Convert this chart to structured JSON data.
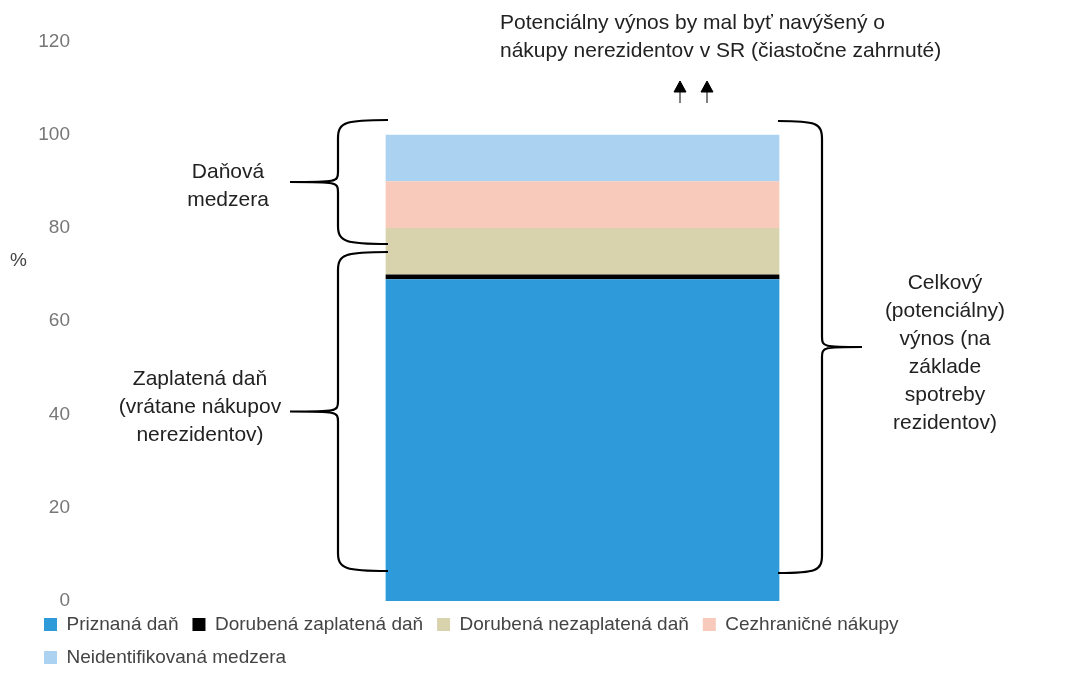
{
  "chart_data": {
    "type": "bar",
    "stacked": true,
    "categories": [
      null
    ],
    "series": [
      {
        "name": "Priznaná daň",
        "color": "#2e9ad9",
        "values": [
          69
        ]
      },
      {
        "name": "Dorubená zaplatená daň",
        "color": "#000000",
        "values": [
          1
        ]
      },
      {
        "name": "Dorubená nezaplatená daň",
        "color": "#d8d2ad",
        "values": [
          10
        ]
      },
      {
        "name": "Cezhraničné nákupy",
        "color": "#f8cabb",
        "values": [
          10
        ]
      },
      {
        "name": "Neidentifikovaná medzera",
        "color": "#abd2f1",
        "values": [
          10
        ]
      }
    ],
    "ylabel": "%",
    "ylim": [
      0,
      120
    ],
    "yticks": [
      0,
      20,
      40,
      60,
      80,
      100,
      120
    ],
    "grid": false,
    "legend": "bottom",
    "annotations": [
      "Potenciálny výnos by mal byť navýšený o nákupy nerezidentov v SR (čiastočne zahrnuté)",
      "Daňová medzera",
      "Zaplatená daň (vrátane nákupov nerezidentov)",
      "Celkový (potenciálny) výnos (na základe spotreby rezidentov)"
    ]
  }
}
